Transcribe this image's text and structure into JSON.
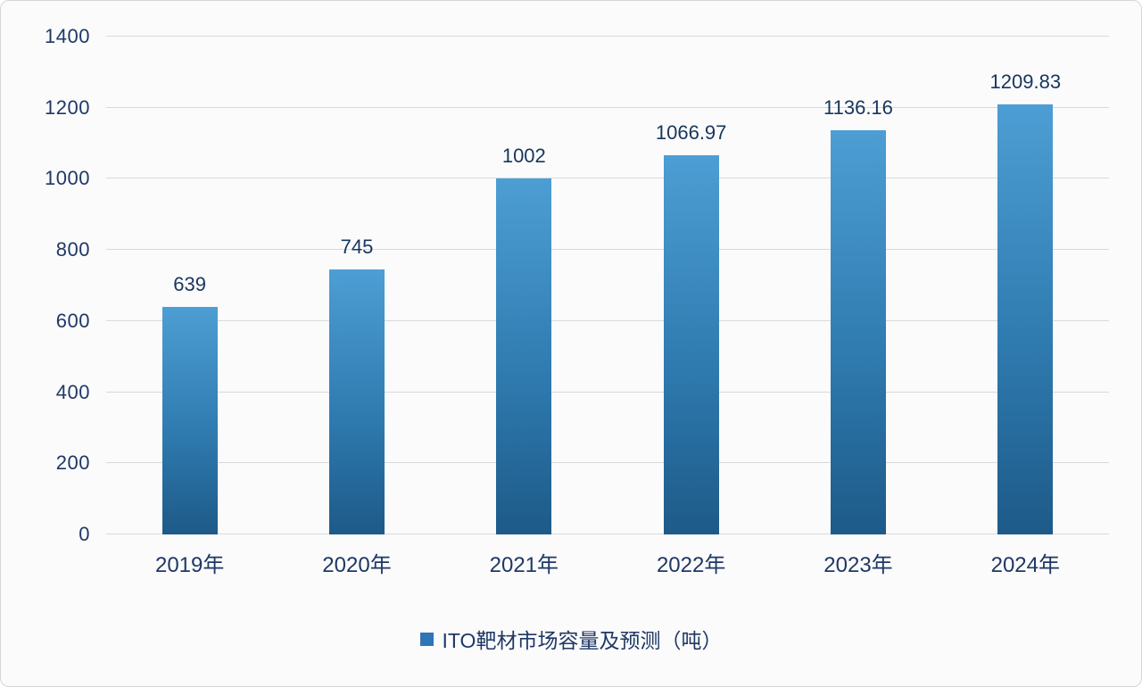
{
  "chart_data": {
    "type": "bar",
    "title": "",
    "categories": [
      "2019年",
      "2020年",
      "2021年",
      "2022年",
      "2023年",
      "2024年"
    ],
    "values": [
      639,
      745,
      1002,
      1066.97,
      1136.16,
      1209.83
    ],
    "value_labels": [
      "639",
      "745",
      "1002",
      "1066.97",
      "1136.16",
      "1209.83"
    ],
    "yticks": [
      0,
      200,
      400,
      600,
      800,
      1000,
      1200,
      1400
    ],
    "ylim": [
      0,
      1400
    ],
    "grid": "horizontal",
    "legend": {
      "label": "ITO靶材市场容量及预测（吨）",
      "position": "bottom",
      "marker_color": "#2e75b6"
    },
    "bar_color_top": "#4d9ed4",
    "bar_color_bottom": "#1d5a88",
    "text_color": "#1f3864",
    "gridline_color": "#d9d9d9",
    "background_color": "#fbfbfc"
  }
}
